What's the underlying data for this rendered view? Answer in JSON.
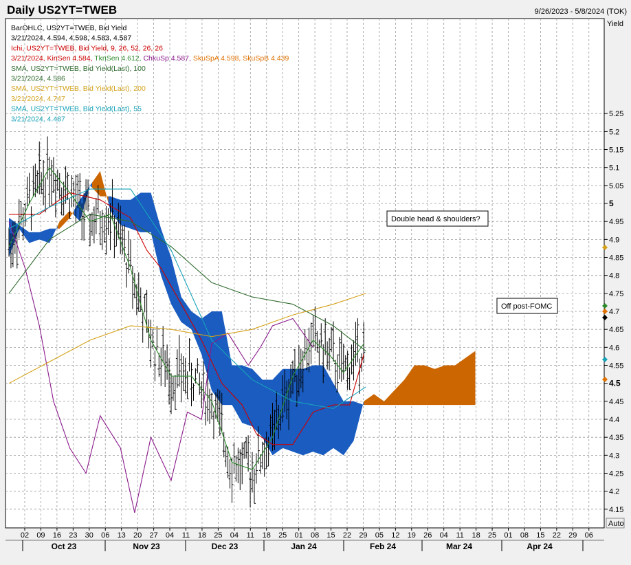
{
  "header": {
    "title": "Daily US2YT=TWEB",
    "date_range": "9/26/2023 - 5/8/2024 (TOK)",
    "auto_button": "Auto",
    "y_axis_title": "Yield"
  },
  "legend": [
    {
      "text": "BarOHLC, US2YT=TWEB, Bid Yield",
      "color": "#000000"
    },
    {
      "text": "3/21/2024, 4.594, 4.598, 4.583, 4.587",
      "color": "#000000"
    },
    {
      "text": "Ichi, US2YT=TWEB, Bid Yield,  9, 26, 52, 26, 26",
      "color": "#cc0000"
    },
    {
      "parts": [
        {
          "text": "3/21/2024, KinSen 4.584, ",
          "color": "#cc0000"
        },
        {
          "text": "TknSen 4.612, ",
          "color": "#2e8b2e"
        },
        {
          "text": "ChkuSp 4.587, ",
          "color": "#8b1a8b"
        },
        {
          "text": "SkuSpA 4.598, ",
          "color": "#e07000"
        },
        {
          "text": "SkuSpB 4.439",
          "color": "#e07000"
        }
      ]
    },
    {
      "text": "SMA, US2YT=TWEB, Bid Yield(Last),  100",
      "color": "#2e6b2e"
    },
    {
      "text": "3/21/2024, 4.586",
      "color": "#2e6b2e"
    },
    {
      "text": "SMA, US2YT=TWEB, Bid Yield(Last),  200",
      "color": "#d4a017"
    },
    {
      "text": "3/21/2024, 4.747",
      "color": "#d4a017"
    },
    {
      "text": "SMA, US2YT=TWEB, Bid Yield(Last),  55",
      "color": "#17a2b8"
    },
    {
      "text": "3/21/2024, 4.487",
      "color": "#17a2b8"
    }
  ],
  "annotations": [
    {
      "text": "Double head & shoulders?"
    },
    {
      "text": "Off post-FOMC"
    }
  ],
  "chart_data": {
    "type": "line",
    "ylim": [
      4.1,
      5.3
    ],
    "y_ticks": [
      "4.15",
      "4.2",
      "4.25",
      "4.3",
      "4.35",
      "4.4",
      "4.45",
      "4.5",
      "4.55",
      "4.6",
      "4.65",
      "4.7",
      "4.75",
      "4.8",
      "4.85",
      "4.9",
      "4.95",
      "5",
      "5.05",
      "5.1",
      "5.15",
      "5.2",
      "5.25"
    ],
    "y_bold_ticks": [
      "4.5",
      "5"
    ],
    "x_day_labels": [
      "02",
      "09",
      "16",
      "23",
      "30",
      "06",
      "13",
      "20",
      "27",
      "04",
      "11",
      "18",
      "25",
      "04",
      "11",
      "18",
      "25",
      "01",
      "08",
      "15",
      "22",
      "29",
      "05",
      "12",
      "19",
      "26",
      "04",
      "11",
      "18",
      "25",
      "01",
      "08",
      "15",
      "22",
      "29",
      "06"
    ],
    "months": [
      "Oct 23",
      "Nov 23",
      "Dec 23",
      "Jan 24",
      "Feb 24",
      "Mar 24",
      "Apr 24"
    ],
    "grid": true,
    "colors": {
      "cloud_bull": "#cc6600",
      "cloud_bear": "#1a5cc0",
      "kijun": "#cc0000",
      "tenkan": "#2e8b2e",
      "chikou": "#8b1a8b",
      "sma100": "#2e6b2e",
      "sma200": "#d4a017",
      "sma55": "#17a2b8",
      "bars": "#000000"
    },
    "series": [
      {
        "name": "SkuSpA",
        "x": [
          0,
          5,
          10,
          15,
          20,
          25,
          30,
          35,
          40,
          45,
          50,
          55,
          60,
          65,
          70,
          75,
          80,
          85,
          90,
          95,
          100,
          105,
          110,
          115,
          120,
          125,
          130,
          135,
          140,
          145,
          150,
          155,
          160,
          165,
          170,
          175,
          180,
          185,
          190,
          195,
          200,
          205,
          210,
          215,
          220,
          225,
          230
        ],
        "values": [
          4.85,
          4.93,
          4.89,
          4.9,
          4.89,
          4.95,
          4.98,
          4.95,
          5.05,
          5.09,
          4.98,
          4.94,
          4.93,
          4.92,
          4.92,
          4.8,
          4.72,
          4.67,
          4.65,
          4.58,
          4.48,
          4.44,
          4.44,
          4.39,
          4.38,
          4.35,
          4.3,
          4.32,
          4.31,
          4.3,
          4.31,
          4.3,
          4.32,
          4.3,
          4.34,
          4.45,
          4.47,
          4.45,
          4.48,
          4.51,
          4.55,
          4.55,
          4.54,
          4.55,
          4.55,
          4.57,
          4.59
        ]
      },
      {
        "name": "SkuSpB",
        "x": [
          0,
          5,
          10,
          15,
          20,
          25,
          30,
          35,
          40,
          45,
          50,
          55,
          60,
          65,
          70,
          75,
          80,
          85,
          90,
          95,
          100,
          105,
          110,
          115,
          120,
          125,
          130,
          135,
          140,
          145,
          150,
          155,
          160,
          165,
          170,
          175,
          180,
          185,
          190,
          195,
          200,
          205,
          210,
          215,
          220,
          225,
          230
        ],
        "values": [
          4.96,
          4.94,
          4.92,
          4.92,
          4.93,
          4.93,
          4.96,
          5.01,
          5.05,
          5.02,
          5.02,
          5.01,
          5.01,
          5.03,
          5.03,
          4.93,
          4.85,
          4.74,
          4.7,
          4.68,
          4.7,
          4.7,
          4.55,
          4.55,
          4.54,
          4.51,
          4.51,
          4.54,
          4.54,
          4.54,
          4.55,
          4.55,
          4.5,
          4.45,
          4.45,
          4.44,
          4.44,
          4.44,
          4.44,
          4.44,
          4.44,
          4.44,
          4.44,
          4.44,
          4.44,
          4.44,
          4.44
        ]
      },
      {
        "name": "KinSen",
        "x": [
          0,
          15,
          30,
          45,
          60,
          68,
          75,
          85,
          95,
          105,
          115,
          122,
          130,
          140,
          150,
          160,
          168,
          175
        ],
        "values": [
          4.97,
          4.97,
          5.03,
          5.01,
          4.96,
          4.87,
          4.82,
          4.72,
          4.62,
          4.5,
          4.44,
          4.36,
          4.33,
          4.33,
          4.42,
          4.44,
          4.44,
          4.58
        ]
      },
      {
        "name": "TknSen",
        "x": [
          0,
          10,
          20,
          30,
          40,
          50,
          60,
          70,
          80,
          90,
          100,
          110,
          120,
          130,
          140,
          150,
          158,
          165,
          175
        ],
        "values": [
          4.88,
          5.0,
          5.1,
          5.03,
          4.95,
          4.97,
          4.82,
          4.62,
          4.52,
          4.52,
          4.45,
          4.28,
          4.26,
          4.35,
          4.52,
          4.62,
          4.58,
          4.53,
          4.61
        ]
      },
      {
        "name": "ChkuSp",
        "x": [
          0,
          8,
          15,
          22,
          30,
          38,
          45,
          55,
          62,
          70,
          80,
          88,
          95,
          100,
          108,
          118,
          124,
          130,
          140,
          150
        ],
        "values": [
          4.95,
          4.82,
          4.66,
          4.45,
          4.32,
          4.25,
          4.41,
          4.32,
          4.14,
          4.35,
          4.23,
          4.42,
          4.4,
          4.61,
          4.64,
          4.55,
          4.6,
          4.66,
          4.68,
          4.6
        ]
      },
      {
        "name": "SMA 100",
        "x": [
          0,
          20,
          40,
          60,
          80,
          100,
          120,
          140,
          160,
          176
        ],
        "values": [
          4.75,
          4.9,
          4.97,
          4.95,
          4.88,
          4.78,
          4.74,
          4.72,
          4.66,
          4.59
        ]
      },
      {
        "name": "SMA 200",
        "x": [
          0,
          20,
          40,
          60,
          80,
          100,
          120,
          140,
          160,
          176
        ],
        "values": [
          4.5,
          4.56,
          4.62,
          4.66,
          4.65,
          4.63,
          4.65,
          4.69,
          4.72,
          4.75
        ]
      },
      {
        "name": "SMA 55",
        "x": [
          0,
          20,
          40,
          60,
          80,
          100,
          120,
          140,
          160,
          176
        ],
        "values": [
          4.93,
          4.99,
          5.04,
          5.04,
          4.87,
          4.62,
          4.51,
          4.45,
          4.43,
          4.49
        ]
      }
    ]
  }
}
